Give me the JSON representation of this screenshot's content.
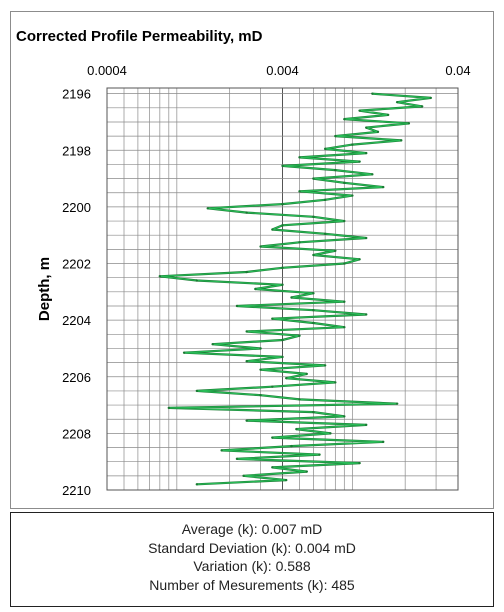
{
  "chart_data": {
    "type": "line",
    "title": "Corrected Profile Permeability, mD",
    "xlabel": "",
    "ylabel": "Depth, m",
    "x_scale": "log",
    "xlim": [
      0.0004,
      0.04
    ],
    "x_tick_labels": [
      "0.0004",
      "0.004",
      "0.04"
    ],
    "ylim": [
      2195.8,
      2210
    ],
    "y_reversed": true,
    "y_tick_labels": [
      "2196",
      "2198",
      "2200",
      "2202",
      "2204",
      "2206",
      "2208",
      "2210"
    ],
    "grid": true,
    "series": [
      {
        "color": "#1a7a33",
        "highlight_color": "#2bc45c",
        "depth": [
          2196.0,
          2196.15,
          2196.3,
          2196.45,
          2196.6,
          2196.75,
          2196.9,
          2197.05,
          2197.2,
          2197.35,
          2197.5,
          2197.65,
          2197.8,
          2197.95,
          2198.1,
          2198.25,
          2198.4,
          2198.55,
          2198.7,
          2198.85,
          2199.0,
          2199.15,
          2199.3,
          2199.45,
          2199.6,
          2199.75,
          2199.9,
          2200.05,
          2200.2,
          2200.35,
          2200.5,
          2200.65,
          2200.8,
          2200.95,
          2201.1,
          2201.25,
          2201.4,
          2201.55,
          2201.7,
          2201.85,
          2202.0,
          2202.15,
          2202.3,
          2202.45,
          2202.6,
          2202.75,
          2202.9,
          2203.05,
          2203.2,
          2203.35,
          2203.5,
          2203.65,
          2203.8,
          2203.95,
          2204.1,
          2204.25,
          2204.4,
          2204.55,
          2204.7,
          2204.85,
          2205.0,
          2205.15,
          2205.3,
          2205.45,
          2205.6,
          2205.75,
          2205.9,
          2206.05,
          2206.2,
          2206.35,
          2206.5,
          2206.65,
          2206.8,
          2206.95,
          2207.1,
          2207.25,
          2207.4,
          2207.55,
          2207.7,
          2207.85,
          2208.0,
          2208.15,
          2208.3,
          2208.45,
          2208.6,
          2208.75,
          2208.9,
          2209.05,
          2209.2,
          2209.35,
          2209.5,
          2209.65,
          2209.8
        ],
        "permeability": [
          0.013,
          0.028,
          0.018,
          0.025,
          0.011,
          0.016,
          0.009,
          0.021,
          0.012,
          0.014,
          0.008,
          0.019,
          0.01,
          0.007,
          0.012,
          0.005,
          0.011,
          0.004,
          0.008,
          0.013,
          0.006,
          0.009,
          0.015,
          0.005,
          0.01,
          0.007,
          0.004,
          0.0015,
          0.0025,
          0.006,
          0.009,
          0.004,
          0.0035,
          0.007,
          0.012,
          0.005,
          0.003,
          0.008,
          0.006,
          0.011,
          0.009,
          0.004,
          0.0025,
          0.0008,
          0.0013,
          0.004,
          0.0028,
          0.006,
          0.0045,
          0.009,
          0.0022,
          0.006,
          0.012,
          0.0035,
          0.006,
          0.009,
          0.0025,
          0.005,
          0.004,
          0.0016,
          0.003,
          0.0011,
          0.004,
          0.0025,
          0.007,
          0.003,
          0.0055,
          0.0042,
          0.008,
          0.0035,
          0.0013,
          0.003,
          0.005,
          0.018,
          0.0009,
          0.006,
          0.009,
          0.0025,
          0.012,
          0.0048,
          0.0075,
          0.0035,
          0.015,
          0.0045,
          0.0018,
          0.0065,
          0.0022,
          0.011,
          0.0035,
          0.0055,
          0.0024,
          0.0042,
          0.0013
        ]
      }
    ]
  },
  "stats": {
    "average": "Average (k): 0.007 mD",
    "std_dev": "Standard Deviation (k): 0.004 mD",
    "variation": "Variation (k): 0.588",
    "count": "Number of Mesurements (k): 485"
  }
}
